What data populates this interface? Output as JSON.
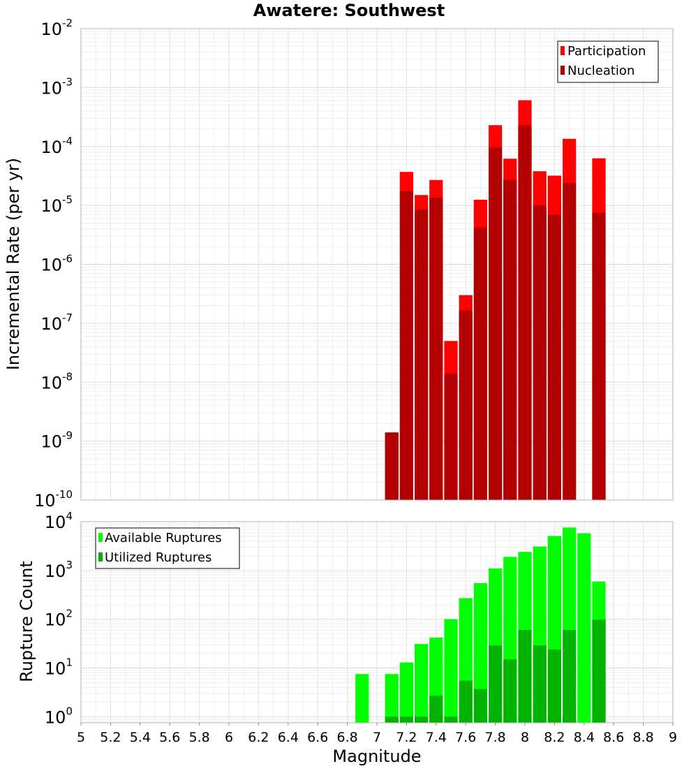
{
  "chart_data": [
    {
      "type": "bar",
      "title": "Awatere: Southwest",
      "xlabel": "",
      "ylabel": "Incremental Rate (per yr)",
      "xlim": [
        5,
        9
      ],
      "ylim": [
        1e-10,
        0.01
      ],
      "yscale": "log",
      "grid": true,
      "legend_position": "top-right",
      "ytick_base": "10",
      "ytick_exponents": [
        "-10",
        "-9",
        "-8",
        "-7",
        "-6",
        "-5",
        "-4",
        "-3",
        "-2"
      ],
      "series": [
        {
          "name": "Participation",
          "color": "#ff0000",
          "x": [
            7.1,
            7.2,
            7.3,
            7.4,
            7.5,
            7.6,
            7.7,
            7.8,
            7.9,
            8.0,
            8.1,
            8.2,
            8.3,
            8.5
          ],
          "values": [
            1.4e-09,
            3.7e-05,
            1.5e-05,
            2.7e-05,
            5e-08,
            3e-07,
            1.25e-05,
            0.00023,
            6.2e-05,
            0.00061,
            3.8e-05,
            3.2e-05,
            0.000135,
            6.3e-05
          ]
        },
        {
          "name": "Nucleation",
          "color": "#b20000",
          "x": [
            7.1,
            7.2,
            7.3,
            7.4,
            7.5,
            7.6,
            7.7,
            7.8,
            7.9,
            8.0,
            8.1,
            8.2,
            8.3,
            8.5
          ],
          "values": [
            1.4e-09,
            1.75e-05,
            8.5e-06,
            1.35e-05,
            1.4e-08,
            1.65e-07,
            4.2e-06,
            9.6e-05,
            2.7e-05,
            0.00023,
            1e-05,
            6.9e-06,
            2.4e-05,
            7.5e-06
          ]
        }
      ]
    },
    {
      "type": "bar",
      "title": "",
      "xlabel": "Magnitude",
      "ylabel": "Rupture Count",
      "xlim": [
        5,
        9
      ],
      "ylim": [
        0.75,
        10000
      ],
      "yscale": "log",
      "grid": true,
      "legend_position": "top-left",
      "ytick_base": "10",
      "ytick_exponents": [
        "0",
        "1",
        "2",
        "3",
        "4"
      ],
      "xtick_labels": [
        "5",
        "5.2",
        "5.4",
        "5.6",
        "5.8",
        "6",
        "6.2",
        "6.4",
        "6.6",
        "6.8",
        "7",
        "7.2",
        "7.4",
        "7.6",
        "7.8",
        "8",
        "8.2",
        "8.4",
        "8.6",
        "8.8",
        "9"
      ],
      "series": [
        {
          "name": "Available Ruptures",
          "color": "#00ff00",
          "x": [
            6.9,
            7.1,
            7.2,
            7.3,
            7.4,
            7.5,
            7.6,
            7.7,
            7.8,
            7.9,
            8.0,
            8.1,
            8.2,
            8.3,
            8.4,
            8.5
          ],
          "values": [
            7.5,
            7.5,
            13,
            31,
            42,
            100,
            270,
            550,
            1100,
            1900,
            2400,
            3100,
            5100,
            7600,
            5800,
            590
          ]
        },
        {
          "name": "Utilized Ruptures",
          "color": "#00b300",
          "x": [
            7.1,
            7.2,
            7.3,
            7.4,
            7.5,
            7.6,
            7.7,
            7.8,
            7.9,
            8.0,
            8.1,
            8.2,
            8.3,
            8.5
          ],
          "values": [
            1,
            1,
            1,
            2.7,
            1,
            5.5,
            3.7,
            29,
            15,
            60,
            29,
            24,
            60,
            98
          ]
        }
      ]
    }
  ]
}
